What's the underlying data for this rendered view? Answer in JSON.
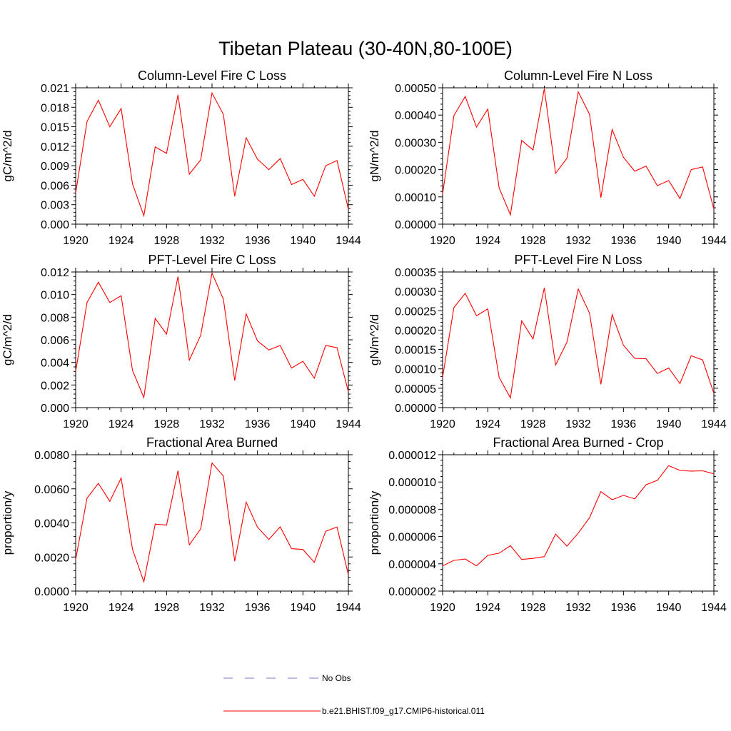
{
  "figure_title": "Tibetan Plateau (30-40N,80-100E)",
  "colors": {
    "model": "#ff0000",
    "obs": "#7777cc"
  },
  "legend": [
    {
      "label": "No Obs",
      "style": "dashed",
      "color": "#7777cc"
    },
    {
      "label": "b.e21.BHIST.f09_g17.CMIP6-historical.011",
      "style": "solid",
      "color": "#ff0000"
    }
  ],
  "chart_data": [
    {
      "type": "line",
      "title": "Column-Level Fire C Loss",
      "ylabel": "gC/m^2/d",
      "xlim": [
        1920,
        1944
      ],
      "ylim": [
        0,
        0.021
      ],
      "xticks": [
        1920,
        1924,
        1928,
        1932,
        1936,
        1940,
        1944
      ],
      "xtick_labels": [
        "1920",
        "1924",
        "1928",
        "1932",
        "1936",
        "1940",
        "1944"
      ],
      "yticks": [
        0,
        0.003,
        0.006,
        0.009,
        0.012,
        0.015,
        0.018,
        0.021
      ],
      "ytick_labels": [
        "0.000",
        "0.003",
        "0.006",
        "0.009",
        "0.012",
        "0.015",
        "0.018",
        "0.021"
      ],
      "x": [
        1920,
        1921,
        1922,
        1923,
        1924,
        1925,
        1926,
        1927,
        1928,
        1929,
        1930,
        1931,
        1932,
        1933,
        1934,
        1935,
        1936,
        1937,
        1938,
        1939,
        1940,
        1941,
        1942,
        1943,
        1944
      ],
      "series": [
        {
          "name": "b.e21.BHIST.f09_g17.CMIP6-historical.011",
          "values": [
            0.0048,
            0.0158,
            0.0191,
            0.015,
            0.0178,
            0.0062,
            0.0013,
            0.0119,
            0.0109,
            0.0199,
            0.0077,
            0.0099,
            0.0202,
            0.0169,
            0.0043,
            0.0133,
            0.01,
            0.0084,
            0.0101,
            0.0061,
            0.0069,
            0.0043,
            0.009,
            0.0098,
            0.0023
          ]
        }
      ]
    },
    {
      "type": "line",
      "title": "Column-Level Fire N Loss",
      "ylabel": "gN/m^2/d",
      "xlim": [
        1920,
        1944
      ],
      "ylim": [
        0,
        0.0005
      ],
      "xticks": [
        1920,
        1924,
        1928,
        1932,
        1936,
        1940,
        1944
      ],
      "xtick_labels": [
        "1920",
        "1924",
        "1928",
        "1932",
        "1936",
        "1940",
        "1944"
      ],
      "yticks": [
        0,
        0.0001,
        0.0002,
        0.0003,
        0.0004,
        0.0005
      ],
      "ytick_labels": [
        "0.00000",
        "0.00010",
        "0.00020",
        "0.00030",
        "0.00040",
        "0.00050"
      ],
      "x": [
        1920,
        1921,
        1922,
        1923,
        1924,
        1925,
        1926,
        1927,
        1928,
        1929,
        1930,
        1931,
        1932,
        1933,
        1934,
        1935,
        1936,
        1937,
        1938,
        1939,
        1940,
        1941,
        1942,
        1943,
        1944
      ],
      "series": [
        {
          "name": "b.e21.BHIST.f09_g17.CMIP6-historical.011",
          "values": [
            0.00011,
            0.000398,
            0.000468,
            0.000356,
            0.000422,
            0.000133,
            3.4e-05,
            0.000307,
            0.000272,
            0.000497,
            0.000186,
            0.000242,
            0.000485,
            0.000403,
            9.7e-05,
            0.000347,
            0.000245,
            0.000194,
            0.000213,
            0.000141,
            0.00016,
            9.4e-05,
            0.0002,
            0.00021,
            5.5e-05
          ]
        }
      ]
    },
    {
      "type": "line",
      "title": "PFT-Level Fire C Loss",
      "ylabel": "gC/m^2/d",
      "xlim": [
        1920,
        1944
      ],
      "ylim": [
        0,
        0.012
      ],
      "xticks": [
        1920,
        1924,
        1928,
        1932,
        1936,
        1940,
        1944
      ],
      "xtick_labels": [
        "1920",
        "1924",
        "1928",
        "1932",
        "1936",
        "1940",
        "1944"
      ],
      "yticks": [
        0,
        0.002,
        0.004,
        0.006,
        0.008,
        0.01,
        0.012
      ],
      "ytick_labels": [
        "0.000",
        "0.002",
        "0.004",
        "0.006",
        "0.008",
        "0.010",
        "0.012"
      ],
      "x": [
        1920,
        1921,
        1922,
        1923,
        1924,
        1925,
        1926,
        1927,
        1928,
        1929,
        1930,
        1931,
        1932,
        1933,
        1934,
        1935,
        1936,
        1937,
        1938,
        1939,
        1940,
        1941,
        1942,
        1943,
        1944
      ],
      "series": [
        {
          "name": "b.e21.BHIST.f09_g17.CMIP6-historical.011",
          "values": [
            0.0032,
            0.0093,
            0.0111,
            0.0093,
            0.0099,
            0.0033,
            0.0009,
            0.0079,
            0.0065,
            0.0116,
            0.0042,
            0.0064,
            0.0119,
            0.0096,
            0.0024,
            0.0083,
            0.0059,
            0.0051,
            0.0055,
            0.0035,
            0.0041,
            0.0026,
            0.0055,
            0.0053,
            0.0014
          ]
        }
      ]
    },
    {
      "type": "line",
      "title": "PFT-Level Fire N Loss",
      "ylabel": "gN/m^2/d",
      "xlim": [
        1920,
        1944
      ],
      "ylim": [
        0,
        0.00035
      ],
      "xticks": [
        1920,
        1924,
        1928,
        1932,
        1936,
        1940,
        1944
      ],
      "xtick_labels": [
        "1920",
        "1924",
        "1928",
        "1932",
        "1936",
        "1940",
        "1944"
      ],
      "yticks": [
        0,
        5e-05,
        0.0001,
        0.00015,
        0.0002,
        0.00025,
        0.0003,
        0.00035
      ],
      "ytick_labels": [
        "0.00000",
        "0.00005",
        "0.00010",
        "0.00015",
        "0.00020",
        "0.00025",
        "0.00030",
        "0.00035"
      ],
      "x": [
        1920,
        1921,
        1922,
        1923,
        1924,
        1925,
        1926,
        1927,
        1928,
        1929,
        1930,
        1931,
        1932,
        1933,
        1934,
        1935,
        1936,
        1937,
        1938,
        1939,
        1940,
        1941,
        1942,
        1943,
        1944
      ],
      "series": [
        {
          "name": "b.e21.BHIST.f09_g17.CMIP6-historical.011",
          "values": [
            7.8e-05,
            0.000258,
            0.000295,
            0.000237,
            0.000255,
            7.8e-05,
            2.5e-05,
            0.000224,
            0.000177,
            0.000309,
            0.00011,
            0.000169,
            0.000306,
            0.000244,
            6e-05,
            0.00024,
            0.000161,
            0.000127,
            0.000126,
            8.8e-05,
            0.000102,
            6.2e-05,
            0.000134,
            0.000123,
            3.7e-05
          ]
        }
      ]
    },
    {
      "type": "line",
      "title": "Fractional Area Burned",
      "ylabel": "proportion/y",
      "xlim": [
        1920,
        1944
      ],
      "ylim": [
        0,
        0.008
      ],
      "xticks": [
        1920,
        1924,
        1928,
        1932,
        1936,
        1940,
        1944
      ],
      "xtick_labels": [
        "1920",
        "1924",
        "1928",
        "1932",
        "1936",
        "1940",
        "1944"
      ],
      "yticks": [
        0,
        0.002,
        0.004,
        0.006,
        0.008
      ],
      "ytick_labels": [
        "0.0000",
        "0.0020",
        "0.0040",
        "0.0060",
        "0.0080"
      ],
      "x": [
        1920,
        1921,
        1922,
        1923,
        1924,
        1925,
        1926,
        1927,
        1928,
        1929,
        1930,
        1931,
        1932,
        1933,
        1934,
        1935,
        1936,
        1937,
        1938,
        1939,
        1940,
        1941,
        1942,
        1943,
        1944
      ],
      "series": [
        {
          "name": "b.e21.BHIST.f09_g17.CMIP6-historical.011",
          "values": [
            0.00185,
            0.00545,
            0.00632,
            0.00527,
            0.00663,
            0.00245,
            0.00055,
            0.00393,
            0.00387,
            0.00706,
            0.00271,
            0.00365,
            0.00752,
            0.00675,
            0.00175,
            0.00522,
            0.00375,
            0.00303,
            0.00377,
            0.00249,
            0.00244,
            0.00169,
            0.00351,
            0.00376,
            0.00095
          ]
        }
      ]
    },
    {
      "type": "line",
      "title": "Fractional Area Burned - Crop",
      "ylabel": "proportion/y",
      "xlim": [
        1920,
        1944
      ],
      "ylim": [
        2e-06,
        1.2e-05
      ],
      "xticks": [
        1920,
        1924,
        1928,
        1932,
        1936,
        1940,
        1944
      ],
      "xtick_labels": [
        "1920",
        "1924",
        "1928",
        "1932",
        "1936",
        "1940",
        "1944"
      ],
      "yticks": [
        2e-06,
        4e-06,
        6e-06,
        8e-06,
        1e-05,
        1.2e-05
      ],
      "ytick_labels": [
        "0.000002",
        "0.000004",
        "0.000006",
        "0.000008",
        "0.000010",
        "0.000012"
      ],
      "x": [
        1920,
        1921,
        1922,
        1923,
        1924,
        1925,
        1926,
        1927,
        1928,
        1929,
        1930,
        1931,
        1932,
        1933,
        1934,
        1935,
        1936,
        1937,
        1938,
        1939,
        1940,
        1941,
        1942,
        1943,
        1944
      ],
      "series": [
        {
          "name": "b.e21.BHIST.f09_g17.CMIP6-historical.011",
          "values": [
            3.85e-06,
            4.25e-06,
            4.35e-06,
            3.85e-06,
            4.62e-06,
            4.78e-06,
            5.33e-06,
            4.32e-06,
            4.4e-06,
            4.53e-06,
            6.18e-06,
            5.3e-06,
            6.25e-06,
            7.38e-06,
            9.3e-06,
            8.7e-06,
            9.02e-06,
            8.76e-06,
            9.8e-06,
            1.012e-05,
            1.12e-05,
            1.085e-05,
            1.08e-05,
            1.082e-05,
            1.06e-05
          ]
        }
      ]
    }
  ]
}
